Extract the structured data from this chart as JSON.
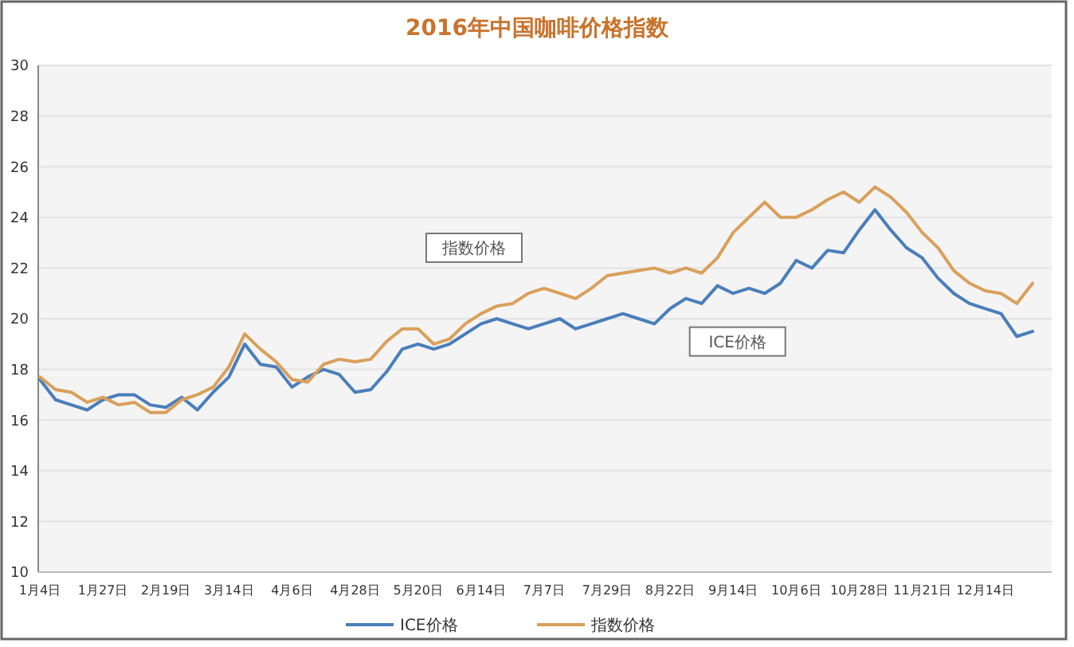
{
  "chart_data": {
    "type": "line",
    "title": "2016年中国咖啡价格指数",
    "categories": [
      "1月4日",
      null,
      null,
      null,
      "1月27日",
      null,
      null,
      null,
      "2月19日",
      null,
      null,
      null,
      "3月14日",
      null,
      null,
      null,
      "4月6日",
      null,
      null,
      null,
      "4月28日",
      null,
      null,
      null,
      "5月20日",
      null,
      null,
      null,
      "6月14日",
      null,
      null,
      null,
      "7月7日",
      null,
      null,
      null,
      "7月29日",
      null,
      null,
      null,
      "8月22日",
      null,
      null,
      null,
      "9月14日",
      null,
      null,
      null,
      "10月6日",
      null,
      null,
      null,
      "10月28日",
      null,
      null,
      null,
      "11月21日",
      null,
      null,
      null,
      "12月14日",
      null,
      null,
      null
    ],
    "series": [
      {
        "name": "ICE价格",
        "color": "#4a7ebb",
        "values": [
          17.6,
          16.8,
          16.6,
          16.4,
          16.8,
          17.0,
          17.0,
          16.6,
          16.5,
          16.9,
          16.4,
          17.1,
          17.7,
          19.0,
          18.2,
          18.1,
          17.3,
          17.7,
          18.0,
          17.8,
          17.1,
          17.2,
          17.9,
          18.8,
          19.0,
          18.8,
          19.0,
          19.4,
          19.8,
          20.0,
          19.8,
          19.6,
          19.8,
          20.0,
          19.6,
          19.8,
          20.0,
          20.2,
          20.0,
          19.8,
          20.4,
          20.8,
          20.6,
          21.3,
          21.0,
          21.2,
          21.0,
          21.4,
          22.3,
          22.0,
          22.7,
          22.6,
          23.5,
          24.3,
          23.5,
          22.8,
          22.4,
          21.6,
          21.0,
          20.6,
          20.4,
          20.2,
          19.3,
          19.5
        ]
      },
      {
        "name": "指数价格",
        "color": "#d9a05b",
        "values": [
          17.7,
          17.2,
          17.1,
          16.7,
          16.9,
          16.6,
          16.7,
          16.3,
          16.3,
          16.8,
          17.0,
          17.3,
          18.1,
          19.4,
          18.8,
          18.3,
          17.6,
          17.5,
          18.2,
          18.4,
          18.3,
          18.4,
          19.1,
          19.6,
          19.6,
          19.0,
          19.2,
          19.8,
          20.2,
          20.5,
          20.6,
          21.0,
          21.2,
          21.0,
          20.8,
          21.2,
          21.7,
          21.8,
          21.9,
          22.0,
          21.8,
          22.0,
          21.8,
          22.4,
          23.4,
          24.0,
          24.6,
          24.0,
          24.0,
          24.3,
          24.7,
          25.0,
          24.6,
          25.2,
          24.8,
          24.2,
          23.4,
          22.8,
          21.9,
          21.4,
          21.1,
          21.0,
          20.6,
          21.4
        ]
      }
    ],
    "ylim": [
      10,
      30
    ],
    "yticks": [
      10,
      12,
      14,
      16,
      18,
      20,
      22,
      24,
      26,
      28,
      30
    ],
    "grid": "y",
    "legend": "bottom",
    "marker": "none",
    "line_style": "solid",
    "annotations": [
      "指数价格",
      "ICE价格"
    ]
  }
}
